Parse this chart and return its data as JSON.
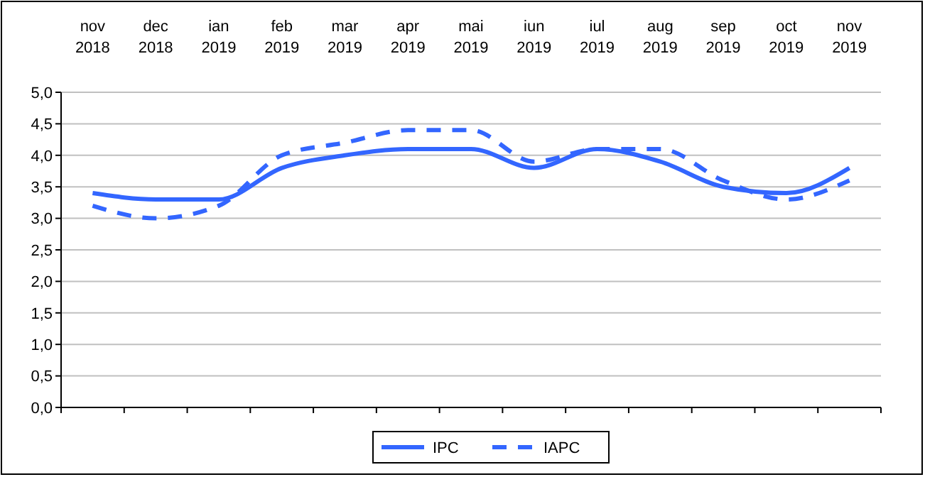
{
  "chart_data": {
    "type": "line",
    "categories": [
      "nov 2018",
      "dec 2018",
      "ian 2019",
      "feb 2019",
      "mar 2019",
      "apr 2019",
      "mai 2019",
      "iun 2019",
      "iul 2019",
      "aug 2019",
      "sep 2019",
      "oct 2019",
      "nov 2019"
    ],
    "series": [
      {
        "name": "IPC",
        "color": "#3366ff",
        "line_style": "solid",
        "values": [
          3.4,
          3.3,
          3.3,
          3.8,
          4.0,
          4.1,
          4.1,
          3.8,
          4.1,
          3.9,
          3.5,
          3.4,
          3.8
        ]
      },
      {
        "name": "IAPC",
        "color": "#3366ff",
        "line_style": "dashed",
        "values": [
          3.2,
          3.0,
          3.2,
          4.0,
          4.2,
          4.4,
          4.4,
          3.9,
          4.1,
          4.1,
          3.6,
          3.3,
          3.6
        ]
      }
    ],
    "ylim": [
      0,
      5
    ],
    "yticks": [
      {
        "value": 0,
        "label": "0,0"
      },
      {
        "value": 0.5,
        "label": "0,5"
      },
      {
        "value": 1,
        "label": "1,0"
      },
      {
        "value": 1.5,
        "label": "1,5"
      },
      {
        "value": 2,
        "label": "2,0"
      },
      {
        "value": 2.5,
        "label": "2,5"
      },
      {
        "value": 3,
        "label": "3,0"
      },
      {
        "value": 3.5,
        "label": "3,5"
      },
      {
        "value": 4,
        "label": "4,0"
      },
      {
        "value": 4.5,
        "label": "4,5"
      },
      {
        "value": 5,
        "label": "5,0"
      }
    ],
    "grid": "y",
    "legend": "bottom",
    "marker": "none"
  }
}
